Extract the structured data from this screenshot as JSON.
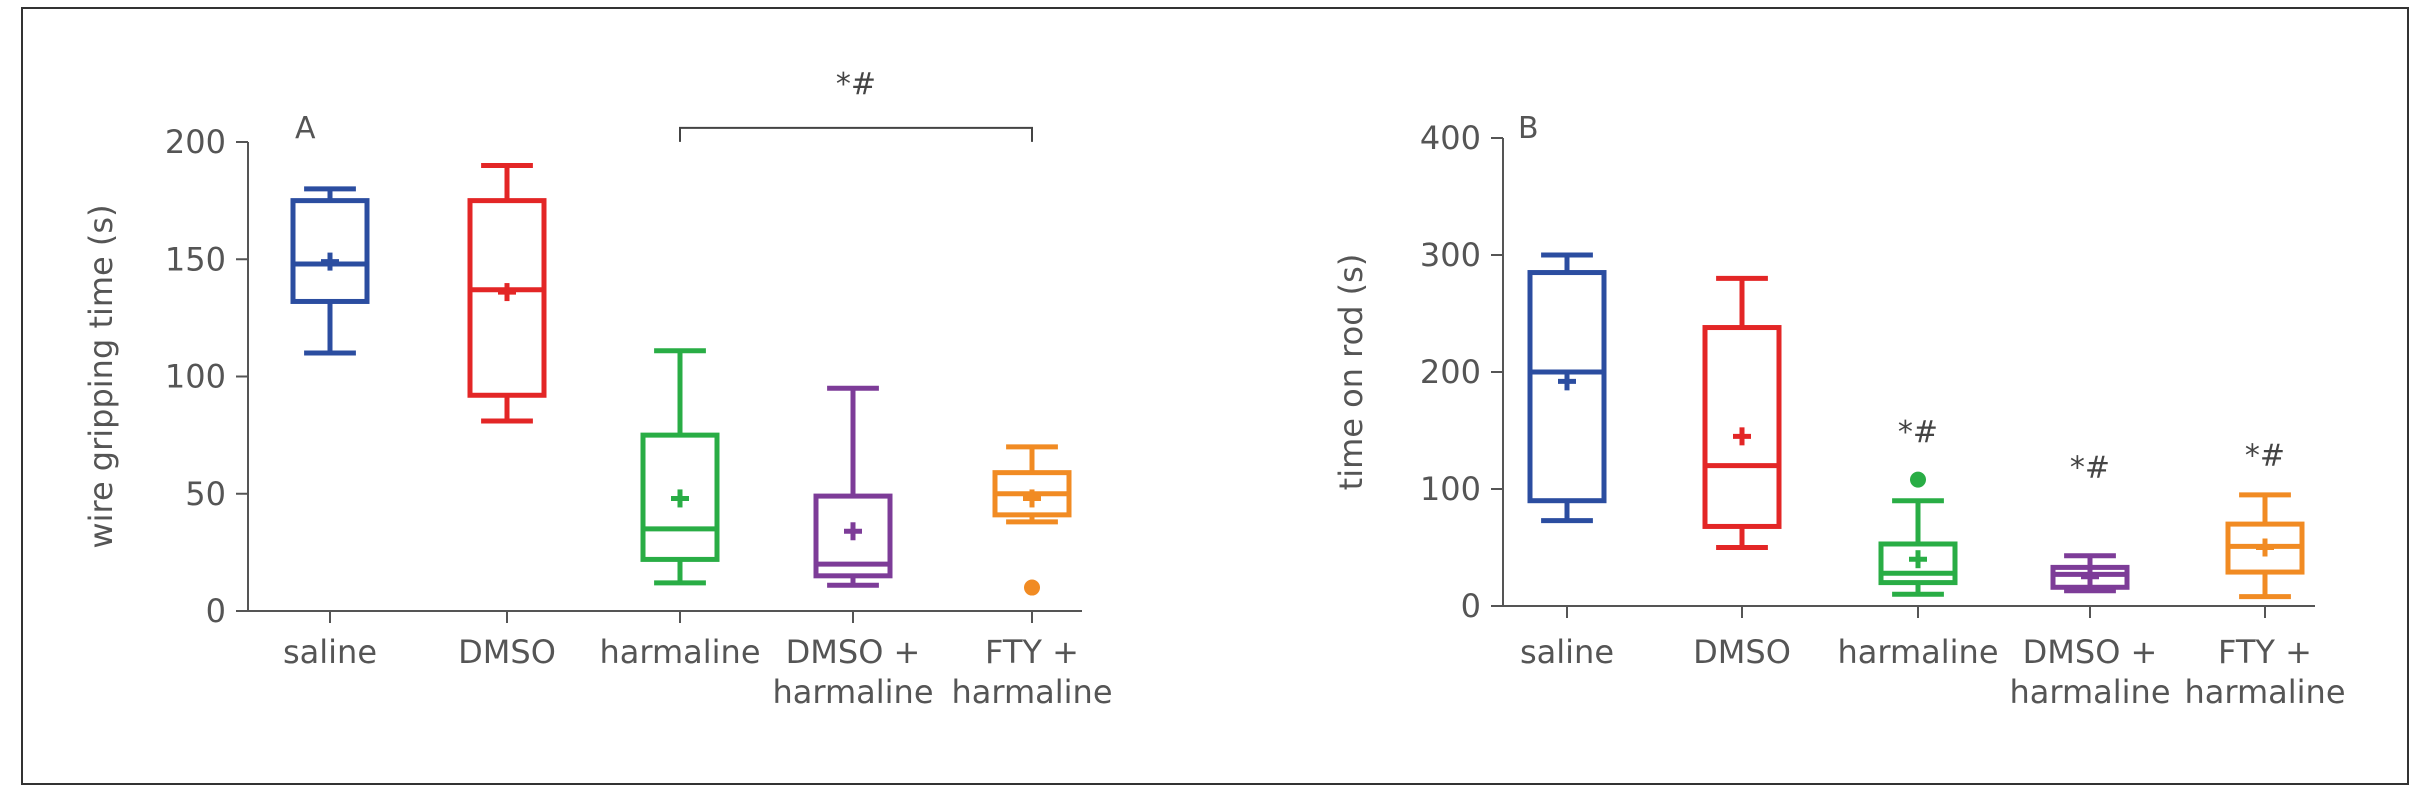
{
  "colors": {
    "saline": "#2b4da0",
    "DMSO": "#e32626",
    "harmaline": "#29ad45",
    "DMSO + harmaline": "#7d3c98",
    "FTY + harmaline": "#f18b23",
    "axis": "#555555"
  },
  "chart_data": [
    {
      "type": "box",
      "panel_label": "A",
      "ylabel": "wire gripping time (s)",
      "ylim": [
        0,
        200
      ],
      "yticks": [
        0,
        50,
        100,
        150,
        200
      ],
      "categories": [
        {
          "lines": [
            "saline"
          ]
        },
        {
          "lines": [
            "DMSO"
          ]
        },
        {
          "lines": [
            "harmaline"
          ]
        },
        {
          "lines": [
            "DMSO +",
            "harmaline"
          ]
        },
        {
          "lines": [
            "FTY +",
            "harmaline"
          ]
        }
      ],
      "boxes": [
        {
          "group": "saline",
          "min": 110,
          "q1": 132,
          "median": 148,
          "q3": 175,
          "max": 180,
          "mean": 149,
          "outliers": []
        },
        {
          "group": "DMSO",
          "min": 81,
          "q1": 92,
          "median": 137,
          "q3": 175,
          "max": 190,
          "mean": 136,
          "outliers": []
        },
        {
          "group": "harmaline",
          "min": 12,
          "q1": 22,
          "median": 35,
          "q3": 75,
          "max": 111,
          "mean": 48,
          "outliers": []
        },
        {
          "group": "DMSO + harmaline",
          "min": 11,
          "q1": 15,
          "median": 20,
          "q3": 49,
          "max": 95,
          "mean": 34,
          "outliers": []
        },
        {
          "group": "FTY + harmaline",
          "min": 38,
          "q1": 41,
          "median": 50,
          "q3": 59,
          "max": 70,
          "mean": 48,
          "outliers": [
            10
          ]
        }
      ],
      "significance": [
        {
          "type": "bracket",
          "from": 2,
          "to": 4,
          "y": 206,
          "text": "*#"
        }
      ]
    },
    {
      "type": "box",
      "panel_label": "B",
      "ylabel": "time on rod (s)",
      "ylim": [
        0,
        400
      ],
      "yticks": [
        0,
        100,
        200,
        300,
        400
      ],
      "categories": [
        {
          "lines": [
            "saline"
          ]
        },
        {
          "lines": [
            "DMSO"
          ]
        },
        {
          "lines": [
            "harmaline"
          ]
        },
        {
          "lines": [
            "DMSO +",
            "harmaline"
          ]
        },
        {
          "lines": [
            "FTY +",
            "harmaline"
          ]
        }
      ],
      "boxes": [
        {
          "group": "saline",
          "min": 73,
          "q1": 90,
          "median": 200,
          "q3": 285,
          "max": 300,
          "mean": 192,
          "outliers": []
        },
        {
          "group": "DMSO",
          "min": 50,
          "q1": 68,
          "median": 120,
          "q3": 238,
          "max": 280,
          "mean": 145,
          "outliers": []
        },
        {
          "group": "harmaline",
          "min": 10,
          "q1": 20,
          "median": 28,
          "q3": 53,
          "max": 90,
          "mean": 40,
          "outliers": [
            108
          ]
        },
        {
          "group": "DMSO + harmaline",
          "min": 13,
          "q1": 16,
          "median": 27,
          "q3": 33,
          "max": 43,
          "mean": 25,
          "outliers": []
        },
        {
          "group": "FTY + harmaline",
          "min": 8,
          "q1": 29,
          "median": 51,
          "q3": 70,
          "max": 95,
          "mean": 50,
          "outliers": []
        }
      ],
      "significance": [
        {
          "type": "marker",
          "at": 2,
          "y": 140,
          "text": "*#"
        },
        {
          "type": "marker",
          "at": 3,
          "y": 110,
          "text": "*#"
        },
        {
          "type": "marker",
          "at": 4,
          "y": 120,
          "text": "*#"
        }
      ]
    }
  ]
}
